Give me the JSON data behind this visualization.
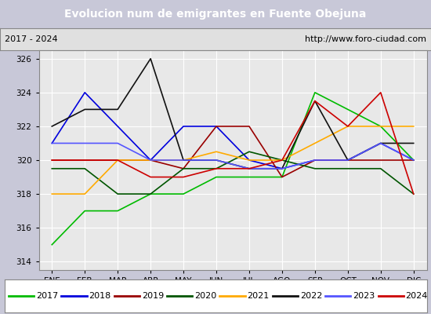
{
  "title": "Evolucion num de emigrantes en Fuente Obejuna",
  "subtitle_left": "2017 - 2024",
  "subtitle_right": "http://www.foro-ciudad.com",
  "title_bg": "#4472c4",
  "months": [
    "ENE",
    "FEB",
    "MAR",
    "ABR",
    "MAY",
    "JUN",
    "JUL",
    "AGO",
    "SEP",
    "OCT",
    "NOV",
    "DIC"
  ],
  "ylim": [
    313.5,
    326.5
  ],
  "yticks": [
    314,
    316,
    318,
    320,
    322,
    324,
    326
  ],
  "series": {
    "2017": {
      "color": "#00bb00",
      "data": [
        315,
        317,
        317,
        318,
        318,
        319,
        319,
        319,
        324,
        323,
        322,
        320
      ]
    },
    "2018": {
      "color": "#0000dd",
      "data": [
        321,
        324,
        322,
        320,
        322,
        322,
        320,
        319.5,
        320,
        320,
        321,
        320
      ]
    },
    "2019": {
      "color": "#990000",
      "data": [
        320,
        320,
        320,
        320,
        319.5,
        322,
        322,
        319,
        320,
        320,
        320,
        320
      ]
    },
    "2020": {
      "color": "#005500",
      "data": [
        319.5,
        319.5,
        318,
        318,
        319.5,
        319.5,
        320.5,
        320,
        319.5,
        319.5,
        319.5,
        318
      ]
    },
    "2021": {
      "color": "#ffaa00",
      "data": [
        318,
        318,
        320,
        320,
        320,
        320.5,
        320,
        320,
        321,
        322,
        322,
        322
      ]
    },
    "2022": {
      "color": "#111111",
      "data": [
        322,
        323,
        323,
        326,
        320,
        320,
        319.5,
        319.5,
        323.5,
        320,
        321,
        321
      ]
    },
    "2023": {
      "color": "#5555ff",
      "data": [
        321,
        321,
        321,
        320,
        320,
        320,
        319.5,
        319.5,
        320,
        320,
        321,
        320
      ]
    },
    "2024": {
      "color": "#cc0000",
      "data": [
        320,
        320,
        320,
        319,
        319,
        319.5,
        319.5,
        320,
        323.5,
        322,
        324,
        318
      ]
    }
  },
  "plot_bg": "#e8e8e8",
  "grid_color": "#ffffff"
}
